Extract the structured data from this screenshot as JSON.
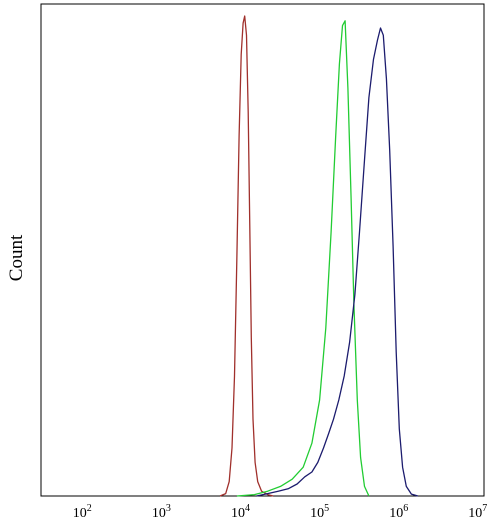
{
  "chart_data": {
    "type": "line",
    "title": "",
    "xlabel": "",
    "ylabel": "Count",
    "x_scale": "log",
    "xlim": [
      30,
      12000000
    ],
    "ylim": [
      0,
      1
    ],
    "grid": false,
    "legend": "none",
    "x_ticks": [
      {
        "value": 100,
        "base": "10",
        "exp": "2"
      },
      {
        "value": 1000,
        "base": "10",
        "exp": "3"
      },
      {
        "value": 10000,
        "base": "10",
        "exp": "4"
      },
      {
        "value": 100000,
        "base": "10",
        "exp": "5"
      },
      {
        "value": 1000000,
        "base": "10",
        "exp": "6"
      },
      {
        "value": 10000000,
        "base": "10",
        "exp": "7"
      }
    ],
    "series": [
      {
        "color": "#a0302c",
        "points": [
          [
            5500,
            0
          ],
          [
            6500,
            0.005
          ],
          [
            7200,
            0.03
          ],
          [
            7800,
            0.1
          ],
          [
            8400,
            0.25
          ],
          [
            9000,
            0.5
          ],
          [
            9600,
            0.75
          ],
          [
            10200,
            0.92
          ],
          [
            10800,
            0.985
          ],
          [
            11300,
            1.0
          ],
          [
            11900,
            0.96
          ],
          [
            12500,
            0.8
          ],
          [
            13100,
            0.56
          ],
          [
            13700,
            0.33
          ],
          [
            14400,
            0.16
          ],
          [
            15300,
            0.07
          ],
          [
            16500,
            0.03
          ],
          [
            18500,
            0.01
          ],
          [
            22000,
            0.003
          ],
          [
            26000,
            0
          ]
        ]
      },
      {
        "color": "#22cc33",
        "points": [
          [
            9000,
            0
          ],
          [
            15000,
            0.003
          ],
          [
            22000,
            0.01
          ],
          [
            32000,
            0.02
          ],
          [
            45000,
            0.035
          ],
          [
            62000,
            0.06
          ],
          [
            80000,
            0.11
          ],
          [
            100000,
            0.2
          ],
          [
            120000,
            0.35
          ],
          [
            140000,
            0.55
          ],
          [
            160000,
            0.75
          ],
          [
            178000,
            0.9
          ],
          [
            195000,
            0.98
          ],
          [
            210000,
            0.99
          ],
          [
            228000,
            0.85
          ],
          [
            250000,
            0.62
          ],
          [
            272000,
            0.4
          ],
          [
            300000,
            0.2
          ],
          [
            330000,
            0.08
          ],
          [
            370000,
            0.02
          ],
          [
            420000,
            0
          ]
        ]
      },
      {
        "color": "#1c1c6e",
        "points": [
          [
            16000,
            0
          ],
          [
            22000,
            0.005
          ],
          [
            30000,
            0.01
          ],
          [
            40000,
            0.015
          ],
          [
            52000,
            0.025
          ],
          [
            65000,
            0.04
          ],
          [
            80000,
            0.05
          ],
          [
            95000,
            0.07
          ],
          [
            112000,
            0.1
          ],
          [
            130000,
            0.13
          ],
          [
            150000,
            0.16
          ],
          [
            175000,
            0.2
          ],
          [
            205000,
            0.25
          ],
          [
            240000,
            0.32
          ],
          [
            280000,
            0.42
          ],
          [
            320000,
            0.55
          ],
          [
            370000,
            0.7
          ],
          [
            420000,
            0.83
          ],
          [
            480000,
            0.91
          ],
          [
            540000,
            0.95
          ],
          [
            590000,
            0.975
          ],
          [
            640000,
            0.96
          ],
          [
            700000,
            0.87
          ],
          [
            770000,
            0.72
          ],
          [
            850000,
            0.52
          ],
          [
            930000,
            0.3
          ],
          [
            1020000,
            0.14
          ],
          [
            1120000,
            0.06
          ],
          [
            1250000,
            0.02
          ],
          [
            1450000,
            0.004
          ],
          [
            1750000,
            0
          ]
        ]
      }
    ]
  }
}
